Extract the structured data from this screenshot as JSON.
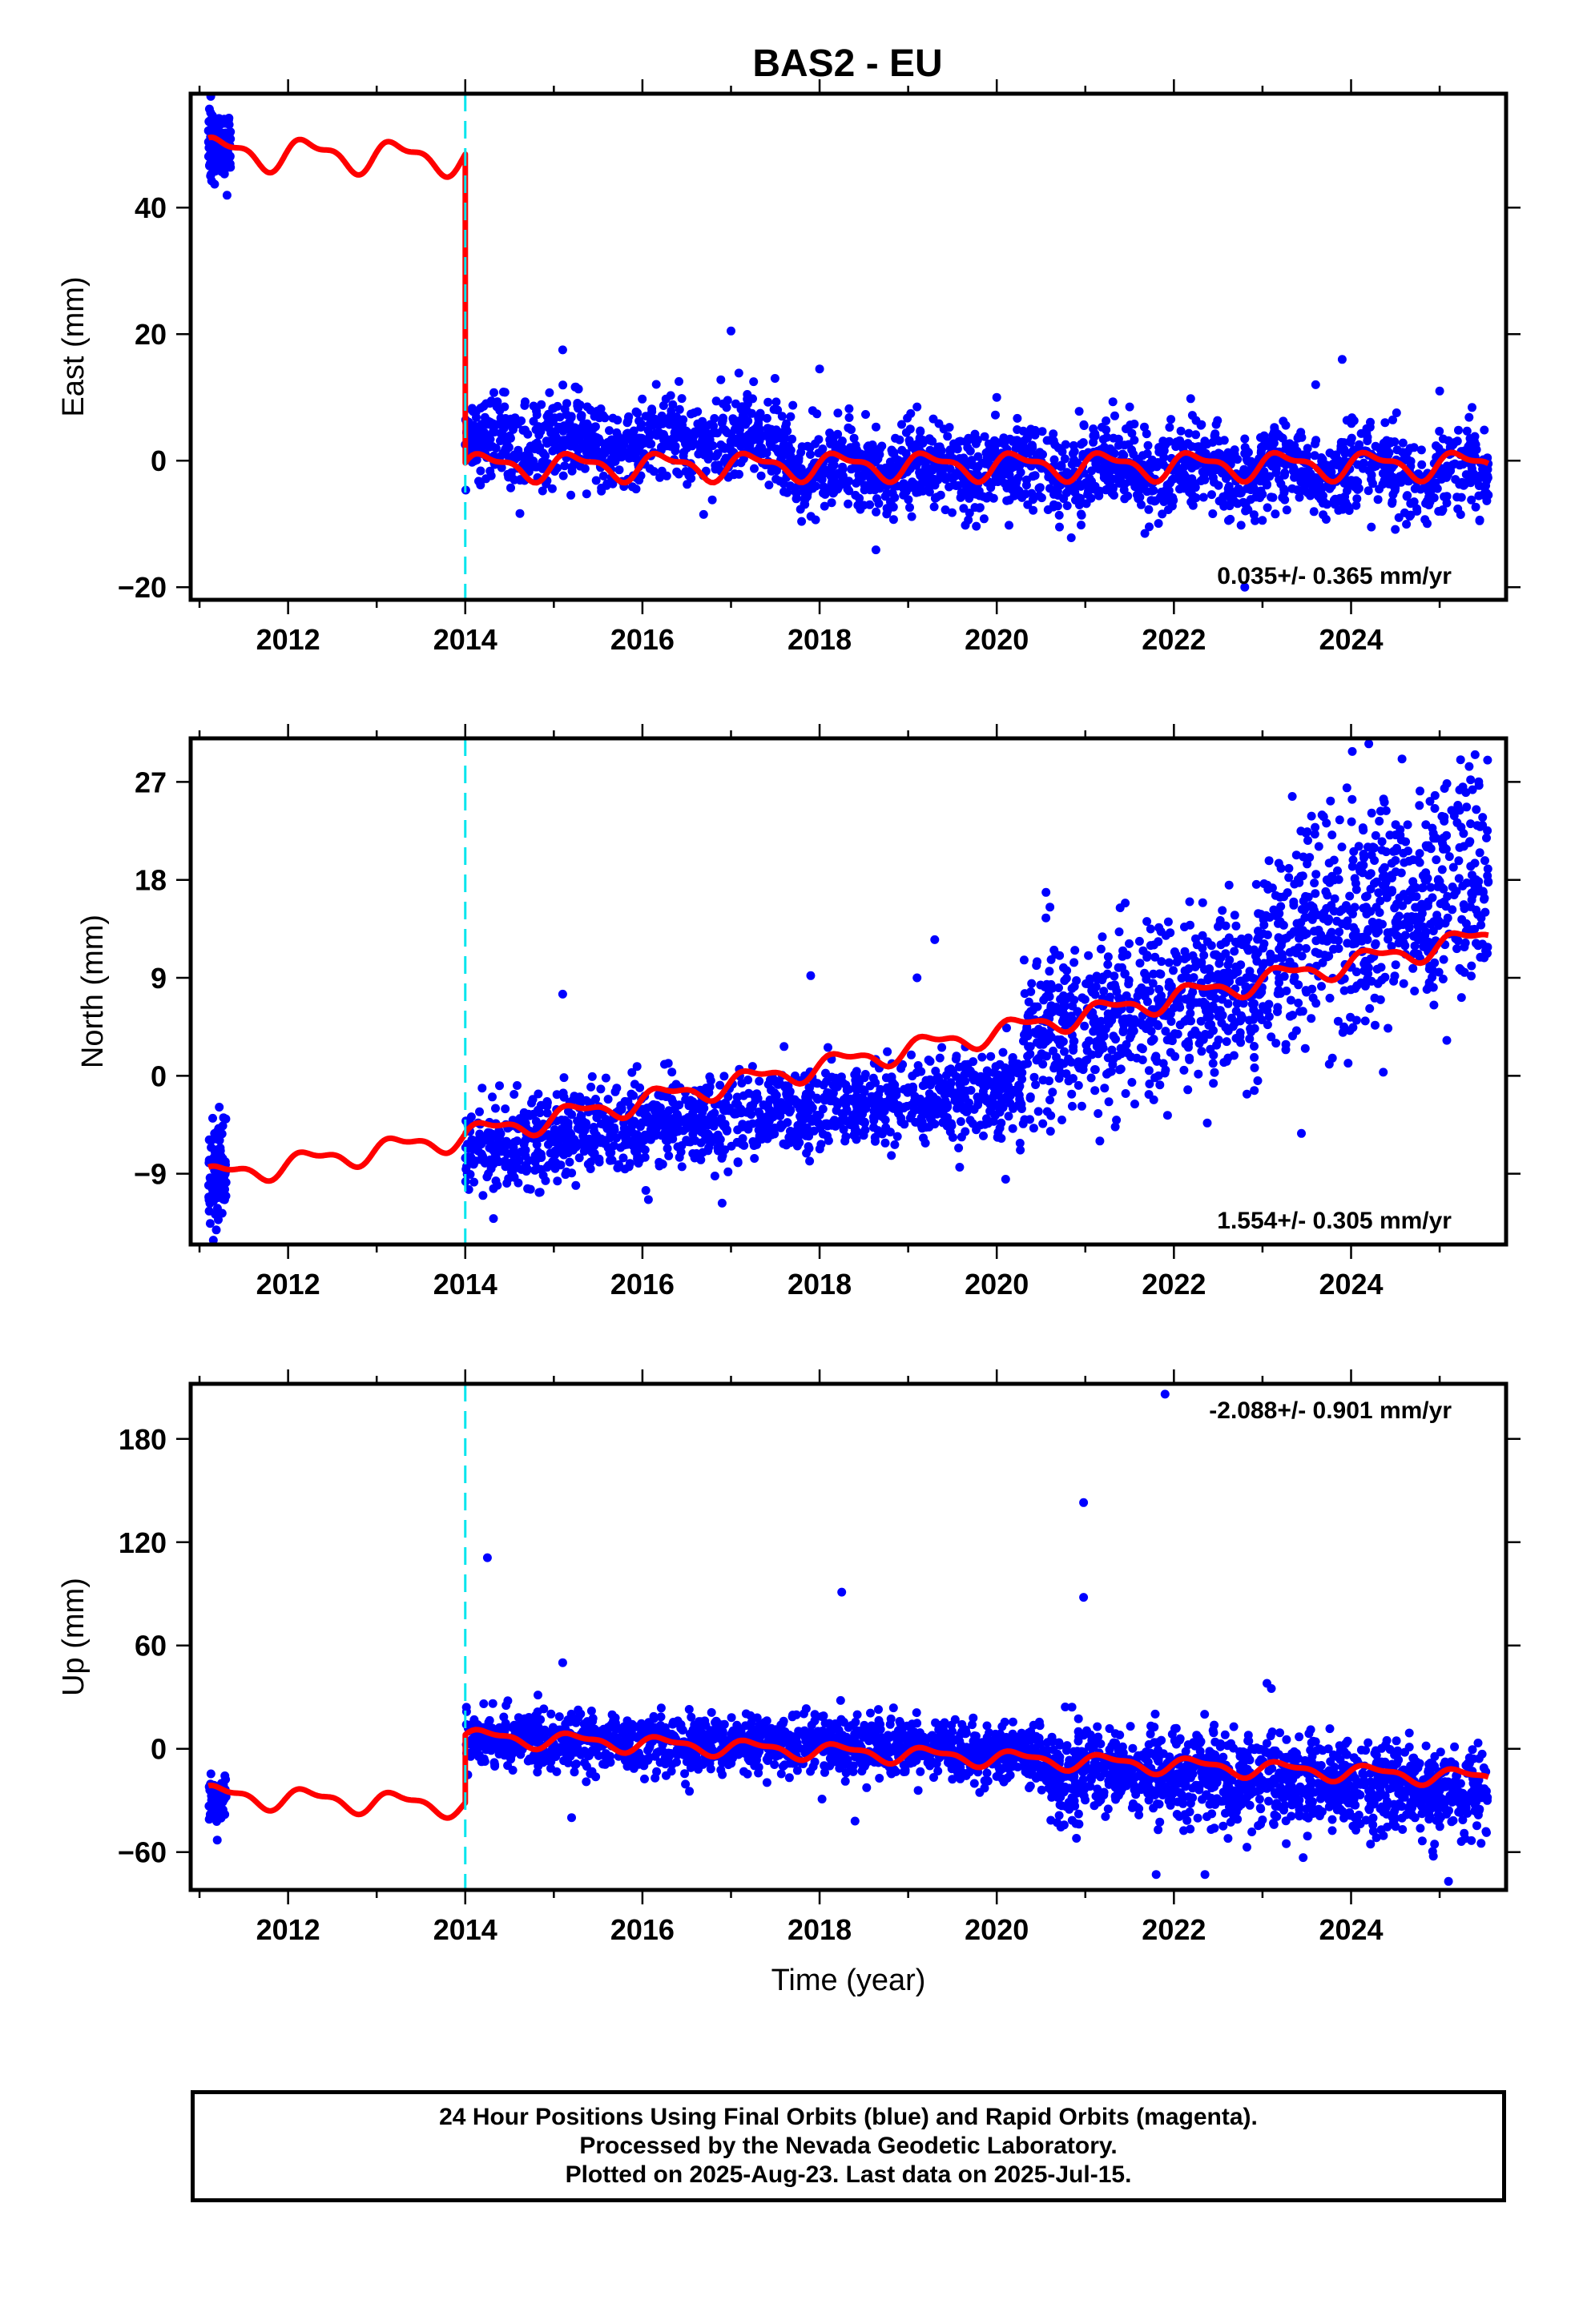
{
  "title": "BAS2 - EU",
  "colors": {
    "observations": "#0000ff",
    "model": "#ff0000",
    "event_marker": "#00e5ee"
  },
  "chart_data": [
    {
      "type": "scatter",
      "ylabel": "East (mm)",
      "xlabel": "",
      "xlim": [
        2010.9,
        2025.75
      ],
      "ylim": [
        -22,
        58
      ],
      "xticks": [
        "2012",
        "2014",
        "2016",
        "2018",
        "2020",
        "2022",
        "2024"
      ],
      "yticks": [
        "−20",
        "0",
        "20",
        "40"
      ],
      "rate_label": "0.035+/- 0.365 mm/yr",
      "event_lines": [
        2014.0
      ],
      "segments": [
        {
          "start": 2011.1,
          "end": 2011.35,
          "center": 50,
          "trend": 0,
          "noise": 2.3,
          "count": 160,
          "shape": "flat"
        },
        {
          "start": 2014.0,
          "end": 2025.55,
          "center": 1.5,
          "trend": -0.9,
          "noise": 3.4,
          "count": 2400,
          "shape": "east"
        }
      ],
      "outliers": [
        [
          2017.0,
          20.5
        ],
        [
          2018.0,
          14.5
        ],
        [
          2019.1,
          8.5
        ],
        [
          2020.0,
          10
        ],
        [
          2023.9,
          16
        ],
        [
          2023.6,
          12
        ],
        [
          2022.8,
          -20
        ],
        [
          2015.1,
          17.5
        ],
        [
          2021.5,
          8.5
        ],
        [
          2025.0,
          11
        ]
      ],
      "model": [
        {
          "x0": 2011.1,
          "x1": 2014.0,
          "y0": 48.8,
          "y1": 47.8,
          "amp": 2.2
        },
        {
          "x0": 2014.0,
          "x1": 2025.55,
          "y0": -0.9,
          "y1": -0.7,
          "amp": 1.9
        }
      ]
    },
    {
      "type": "scatter",
      "ylabel": "North (mm)",
      "xlabel": "",
      "xlim": [
        2010.9,
        2025.75
      ],
      "ylim": [
        -15.5,
        31
      ],
      "xticks": [
        "2012",
        "2014",
        "2016",
        "2018",
        "2020",
        "2022",
        "2024"
      ],
      "yticks": [
        "−9",
        "0",
        "9",
        "18",
        "27"
      ],
      "rate_label": "1.554+/- 0.305 mm/yr",
      "event_lines": [
        2014.0
      ],
      "segments": [
        {
          "start": 2011.1,
          "end": 2011.3,
          "center": -9,
          "trend": 0,
          "noise": 2.4,
          "count": 110,
          "shape": "flat"
        },
        {
          "start": 2014.0,
          "end": 2020.3,
          "center": -6.5,
          "trend": 0.85,
          "noise": 2.1,
          "count": 1300,
          "shape": "flat"
        },
        {
          "start": 2020.3,
          "end": 2023.0,
          "center": 3.5,
          "trend": 1.9,
          "noise": 3.8,
          "count": 650,
          "shape": "flat"
        },
        {
          "start": 2023.0,
          "end": 2025.55,
          "center": 12.0,
          "trend": 2.4,
          "noise": 5.2,
          "count": 620,
          "shape": "flat"
        }
      ],
      "outliers": [
        [
          2017.9,
          9.2
        ],
        [
          2019.3,
          12.5
        ],
        [
          2019.1,
          9
        ],
        [
          2015.1,
          7.5
        ],
        [
          2016.9,
          -11.7
        ],
        [
          2024.2,
          30.5
        ],
        [
          2025.4,
          29.5
        ],
        [
          2020.1,
          -9.5
        ],
        [
          2014.2,
          -11
        ],
        [
          2020.6,
          15.5
        ]
      ],
      "model": [
        {
          "x0": 2011.1,
          "x1": 2014.0,
          "y0": -9.3,
          "y1": -5.6,
          "amp": 0.9
        },
        {
          "x0": 2014.0,
          "x1": 2025.55,
          "y0": -5.5,
          "y1": 12.8,
          "amp": 0.9
        }
      ]
    },
    {
      "type": "scatter",
      "ylabel": "Up (mm)",
      "xlabel": "Time (year)",
      "xlim": [
        2010.9,
        2025.75
      ],
      "ylim": [
        -82,
        212
      ],
      "xticks": [
        "2012",
        "2014",
        "2016",
        "2018",
        "2020",
        "2022",
        "2024"
      ],
      "yticks": [
        "−60",
        "0",
        "60",
        "120",
        "180"
      ],
      "rate_label": "-2.088+/- 0.901 mm/yr",
      "event_lines": [
        2014.0
      ],
      "segments": [
        {
          "start": 2011.1,
          "end": 2011.3,
          "center": -29,
          "trend": 0,
          "noise": 6,
          "count": 90,
          "shape": "flat"
        },
        {
          "start": 2014.0,
          "end": 2020.5,
          "center": 7,
          "trend": -1.4,
          "noise": 8.5,
          "count": 1450,
          "shape": "flat"
        },
        {
          "start": 2020.5,
          "end": 2025.55,
          "center": -12,
          "trend": -2.6,
          "noise": 13,
          "count": 1250,
          "shape": "flat"
        }
      ],
      "outliers": [
        [
          2014.25,
          111
        ],
        [
          2015.1,
          50
        ],
        [
          2018.25,
          91
        ],
        [
          2020.98,
          143
        ],
        [
          2020.98,
          88
        ],
        [
          2021.9,
          206
        ],
        [
          2023.05,
          38
        ],
        [
          2023.1,
          35
        ],
        [
          2021.8,
          -73
        ],
        [
          2022.35,
          -73
        ],
        [
          2025.1,
          -77
        ],
        [
          2015.2,
          -40
        ],
        [
          2011.2,
          -53
        ],
        [
          2018.4,
          -42
        ],
        [
          2020.9,
          -52
        ]
      ],
      "model": [
        {
          "x0": 2011.1,
          "x1": 2014.0,
          "y0": -27,
          "y1": -33,
          "amp": 5.5
        },
        {
          "x0": 2014.0,
          "x1": 2025.55,
          "y0": 7,
          "y1": -17,
          "amp": 4.2
        }
      ]
    }
  ],
  "footer": {
    "line1": "24 Hour Positions Using Final Orbits (blue) and Rapid Orbits (magenta).",
    "line2": "Processed by the Nevada Geodetic Laboratory.",
    "line3": "Plotted on 2025-Aug-23. Last data on 2025-Jul-15."
  }
}
